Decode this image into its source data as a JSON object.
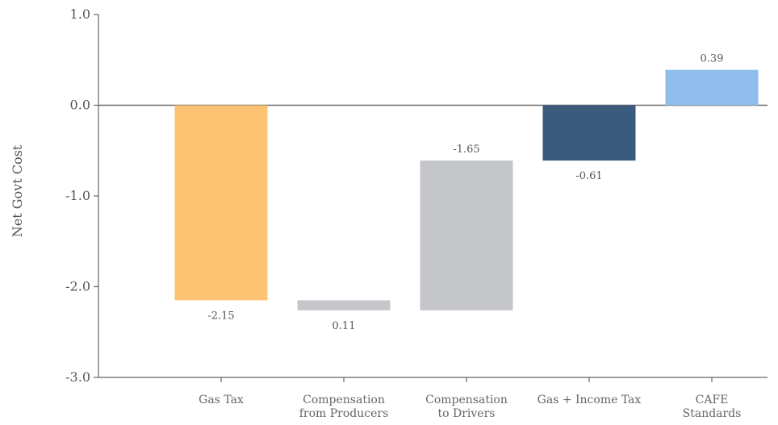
{
  "chart_data": {
    "type": "bar",
    "subtype": "waterfall",
    "ylabel": "Net Govt Cost",
    "ylim": [
      -3.0,
      1.0
    ],
    "yticks": [
      "1.0",
      "0.0",
      "-1.0",
      "-2.0",
      "-3.0"
    ],
    "ytick_values": [
      1.0,
      0.0,
      -1.0,
      -2.0,
      -3.0
    ],
    "grid": false,
    "zero_line": true,
    "bars": [
      {
        "category": [
          "Gas Tax"
        ],
        "start": 0.0,
        "end": -2.15,
        "label": "-2.15",
        "label_position": "below",
        "color": "#fbc372"
      },
      {
        "category": [
          "Compensation",
          "from Producers"
        ],
        "start": -2.15,
        "end": -2.26,
        "label": "0.11",
        "label_position": "below",
        "color": "#c5c6ca"
      },
      {
        "category": [
          "Compensation",
          "to Drivers"
        ],
        "start": -2.26,
        "end": -0.61,
        "label": "-1.65",
        "label_position": "above",
        "color": "#c5c6ca"
      },
      {
        "category": [
          "Gas + Income Tax"
        ],
        "start": 0.0,
        "end": -0.61,
        "label": "-0.61",
        "label_position": "below",
        "color": "#3a5a7e"
      },
      {
        "category": [
          "CAFE",
          "Standards"
        ],
        "start": 0.0,
        "end": 0.39,
        "label": "0.39",
        "label_position": "above",
        "color": "#8fbdec"
      }
    ]
  }
}
